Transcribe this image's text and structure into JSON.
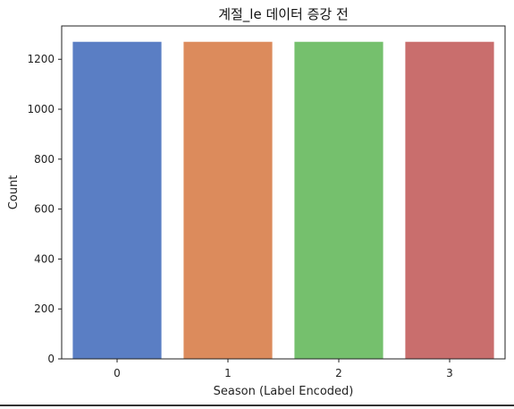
{
  "chart_data": {
    "type": "bar",
    "title": "계절_le 데이터 증강 전",
    "xlabel": "Season (Label Encoded)",
    "ylabel": "Count",
    "categories": [
      "0",
      "1",
      "2",
      "3"
    ],
    "values": [
      1270,
      1270,
      1270,
      1270
    ],
    "ylim": [
      0,
      1333.5
    ],
    "yticks": [
      0,
      200,
      400,
      600,
      800,
      1000,
      1200
    ],
    "ytick_labels": [
      "0",
      "200",
      "400",
      "600",
      "800",
      "1000",
      "1200"
    ],
    "colors": [
      "#5a7ec4",
      "#dc8b5c",
      "#75c06d",
      "#c96e6d"
    ],
    "grid": false,
    "legend": "none"
  }
}
